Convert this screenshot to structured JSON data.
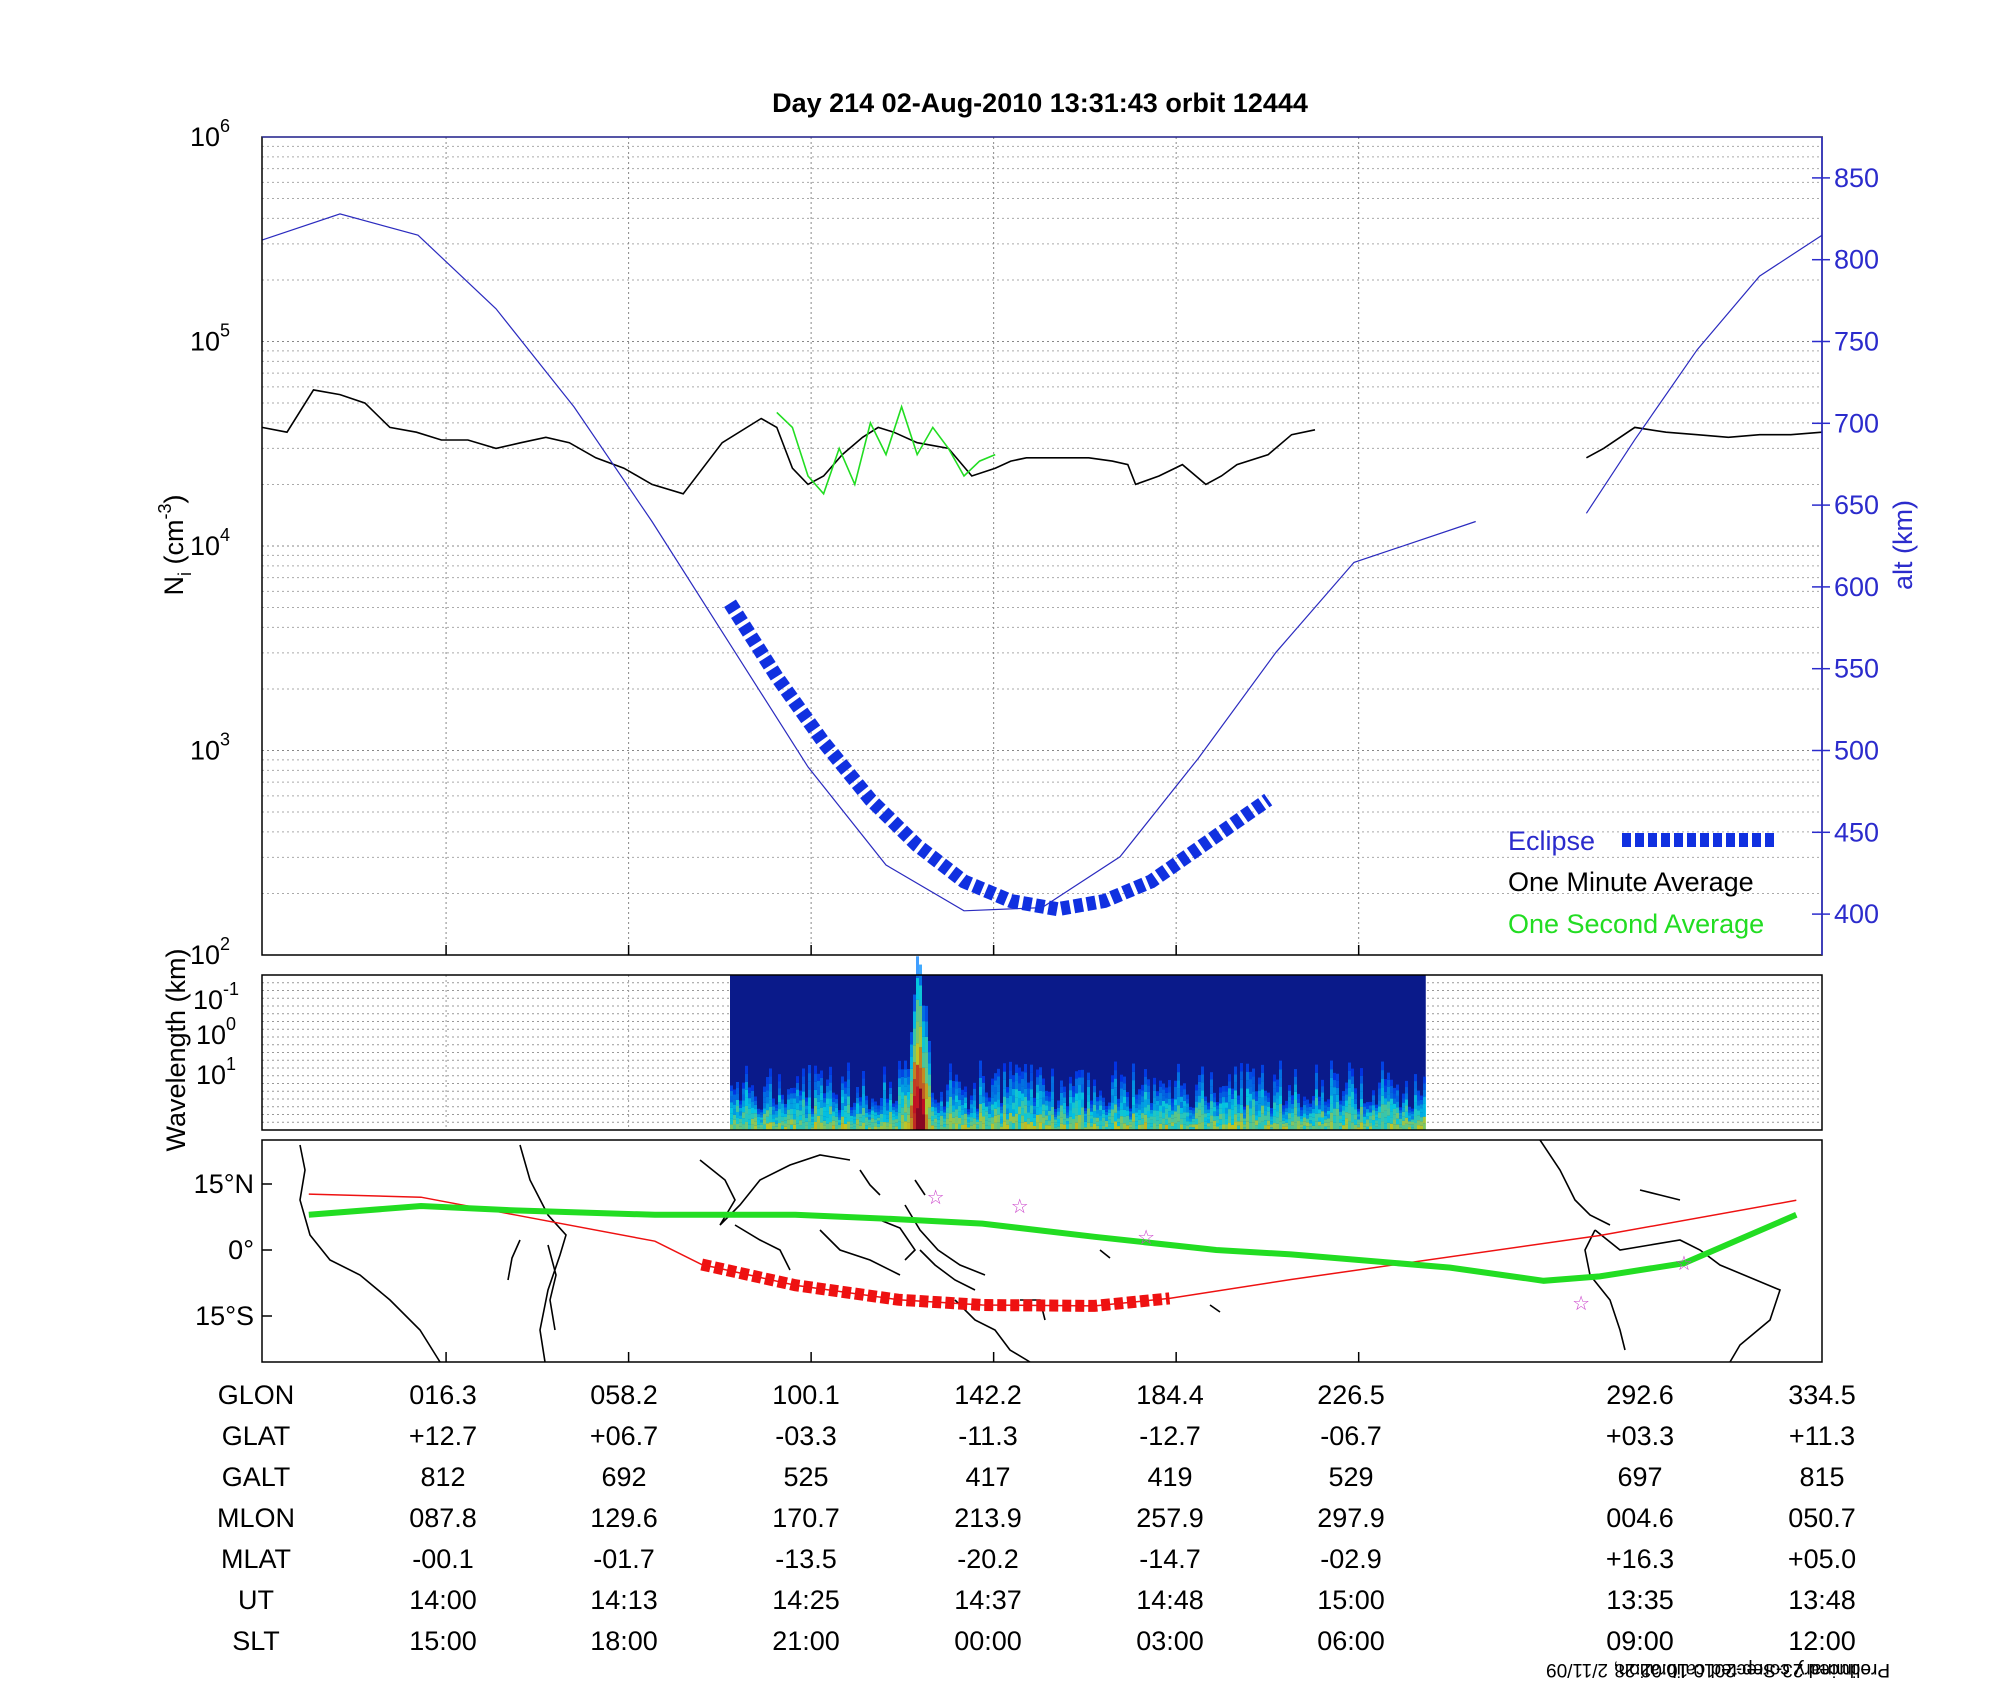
{
  "title": "Day 214  02-Aug-2010 13:31:43   orbit 12444",
  "colors": {
    "altitude": "#2b2bbf",
    "axis_right": "#2b2bcc",
    "eclipse": "#1030e0",
    "one_minute": "#000000",
    "one_second": "#22dd22",
    "track_red": "#ee1111",
    "magnetic_green": "#22dd22",
    "star": "#cc44cc"
  },
  "chart_data": [
    {
      "type": "line",
      "panel": "density_altitude",
      "ylabel_left": "N",
      "ylabel_left_sub": "i",
      "ylabel_left_unit_pre": " (cm",
      "ylabel_left_unit_sup": "-3",
      "ylabel_left_unit_post": ")",
      "yscale_left": "log",
      "ylim_left": [
        100,
        1000000
      ],
      "ytick_left_base": [
        "10",
        "10",
        "10",
        "10",
        "10"
      ],
      "ytick_left_exp": [
        "2",
        "3",
        "4",
        "5",
        "6"
      ],
      "ylabel_right": "alt (km)",
      "ylim_right": [
        375,
        875
      ],
      "yticks_right": [
        "400",
        "450",
        "500",
        "550",
        "600",
        "650",
        "700",
        "750",
        "800",
        "850"
      ],
      "xlim_orbit_fraction": [
        0,
        1
      ],
      "legend": {
        "placement": "bottom-right",
        "eclipse": "Eclipse",
        "one_minute": "One Minute Average",
        "one_second": "One Second Average"
      },
      "series": [
        {
          "name": "One Minute Average",
          "color": "#000000",
          "x": [
            0.0,
            0.016,
            0.033,
            0.05,
            0.066,
            0.082,
            0.099,
            0.115,
            0.132,
            0.15,
            0.166,
            0.182,
            0.197,
            0.214,
            0.232,
            0.25,
            0.27,
            0.295,
            0.32,
            0.33,
            0.34,
            0.35,
            0.36,
            0.372,
            0.385,
            0.395,
            0.405,
            0.42,
            0.44,
            0.455,
            0.47,
            0.48,
            0.49,
            0.5,
            0.515,
            0.53,
            0.545,
            0.555,
            0.56,
            0.575,
            0.59,
            0.605,
            0.615,
            0.625,
            0.645,
            0.66,
            0.675,
            0.69,
            0.71,
            0.73,
            0.74,
            0.75,
            0.765,
            0.778
          ],
          "y": [
            38000,
            36000,
            58000,
            55000,
            50000,
            38000,
            36000,
            33000,
            33000,
            30000,
            32000,
            34000,
            32000,
            27000,
            24000,
            20000,
            18000,
            32000,
            42000,
            38000,
            24000,
            20000,
            22000,
            28000,
            34000,
            38000,
            36000,
            32000,
            30000,
            22000,
            24000,
            26000,
            27000,
            27000,
            27000,
            27000,
            26000,
            25000,
            20000,
            22000,
            25000,
            20000,
            22000,
            25000,
            28000,
            35000,
            37000,
            null,
            null,
            null,
            null,
            null,
            null,
            null
          ]
        },
        {
          "name": "One Second Average",
          "color": "#22dd22",
          "x": [
            0.33,
            0.34,
            0.35,
            0.36,
            0.37,
            0.38,
            0.39,
            0.4,
            0.41,
            0.42,
            0.43,
            0.44,
            0.45,
            0.46,
            0.47
          ],
          "y": [
            45000,
            38000,
            22000,
            18000,
            30000,
            20000,
            40000,
            28000,
            48000,
            28000,
            38000,
            30000,
            22000,
            26000,
            28000
          ]
        },
        {
          "name": "One Minute Average (late segment)",
          "color": "#000000",
          "x": [
            0.849,
            0.86,
            0.88,
            0.9,
            0.92,
            0.94,
            0.96,
            0.98,
            1.0
          ],
          "y": [
            27000,
            30000,
            38000,
            36000,
            35000,
            34000,
            35000,
            35000,
            36000
          ]
        },
        {
          "name": "altitude",
          "color": "#2b2bbf",
          "axis": "right",
          "x": [
            0.0,
            0.05,
            0.1,
            0.15,
            0.2,
            0.25,
            0.3,
            0.35,
            0.4,
            0.45,
            0.5,
            0.55,
            0.6,
            0.65,
            0.7,
            0.778
          ],
          "y": [
            812,
            828,
            815,
            770,
            710,
            640,
            565,
            490,
            430,
            402,
            404,
            435,
            495,
            560,
            615,
            640
          ]
        },
        {
          "name": "altitude (late segment)",
          "color": "#2b2bbf",
          "axis": "right",
          "x": [
            0.849,
            0.88,
            0.92,
            0.96,
            1.0
          ],
          "y": [
            645,
            690,
            745,
            790,
            815
          ]
        },
        {
          "name": "Eclipse",
          "color": "#1030e0",
          "axis": "right",
          "style": "thick-dashed",
          "x": [
            0.3,
            0.33,
            0.36,
            0.39,
            0.42,
            0.45,
            0.48,
            0.51,
            0.54,
            0.57,
            0.6,
            0.63,
            0.645
          ],
          "y": [
            590,
            545,
            505,
            470,
            442,
            420,
            408,
            403,
            408,
            420,
            440,
            460,
            470
          ]
        }
      ]
    },
    {
      "type": "heatmap",
      "panel": "spectrogram",
      "ylabel": "Wavelength (km)",
      "ytick_base": [
        "10",
        "10",
        "10"
      ],
      "ytick_exp": [
        "-1",
        "0",
        "1"
      ],
      "x_extent_orbit_fraction": [
        0.3,
        0.746
      ],
      "colormap": "jet",
      "description_values": "low power (dark blue) with bursts near 0.42 orbit fraction"
    },
    {
      "type": "map",
      "panel": "ground_track",
      "yticks": [
        "15°N",
        "0°",
        "15°S"
      ],
      "tracks": [
        {
          "name": "geographic track",
          "color": "#ee1111",
          "lon": [
            16,
            40,
            60,
            90,
            100,
            120,
            142,
            160,
            184,
            200,
            226,
            292,
            334
          ],
          "lat": [
            12.7,
            12,
            8,
            2,
            -3.3,
            -8,
            -11.3,
            -12.5,
            -12.7,
            -11,
            -6.7,
            3.3,
            11.3
          ]
        },
        {
          "name": "magnetic equator",
          "color": "#22dd22",
          "lon": [
            16,
            40,
            60,
            90,
            120,
            142,
            160,
            184,
            210,
            226,
            260,
            280,
            292,
            310,
            334
          ],
          "lat": [
            8,
            10,
            9,
            8,
            8,
            7,
            6,
            3,
            0,
            -1,
            -4,
            -7,
            -6,
            -3,
            8
          ]
        }
      ],
      "stars": [
        {
          "lon": 150,
          "lat": 12
        },
        {
          "lon": 168,
          "lat": 10
        },
        {
          "lon": 195,
          "lat": 3
        },
        {
          "lon": 288,
          "lat": -12
        },
        {
          "lon": 310,
          "lat": -3
        }
      ]
    }
  ],
  "table": {
    "rows": [
      {
        "label": "GLON",
        "values": [
          "016.3",
          "058.2",
          "100.1",
          "142.2",
          "184.4",
          "226.5",
          "292.6",
          "334.5"
        ]
      },
      {
        "label": "GLAT",
        "values": [
          "+12.7",
          "+06.7",
          "-03.3",
          "-11.3",
          "-12.7",
          "-06.7",
          "+03.3",
          "+11.3"
        ]
      },
      {
        "label": "GALT",
        "values": [
          "812",
          "692",
          "525",
          "417",
          "419",
          "529",
          "697",
          "815"
        ]
      },
      {
        "label": "MLON",
        "values": [
          "087.8",
          "129.6",
          "170.7",
          "213.9",
          "257.9",
          "297.9",
          "004.6",
          "050.7"
        ]
      },
      {
        "label": "MLAT",
        "values": [
          "-00.1",
          "-01.7",
          "-13.5",
          "-20.2",
          "-14.7",
          "-02.9",
          "+16.3",
          "+05.0"
        ]
      },
      {
        "label": "UT",
        "values": [
          "14:00",
          "14:13",
          "14:25",
          "14:37",
          "14:48",
          "15:00",
          "13:35",
          "13:48"
        ]
      },
      {
        "label": "SLT",
        "values": [
          "15:00",
          "18:00",
          "21:00",
          "00:00",
          "03:00",
          "06:00",
          "09:00",
          "12:00"
        ]
      }
    ]
  },
  "footnote": {
    "line1": "Preliminary corrected calibration, 2/11/09",
    "line2": "Produced 23-Sep-2010 10:02:28"
  }
}
